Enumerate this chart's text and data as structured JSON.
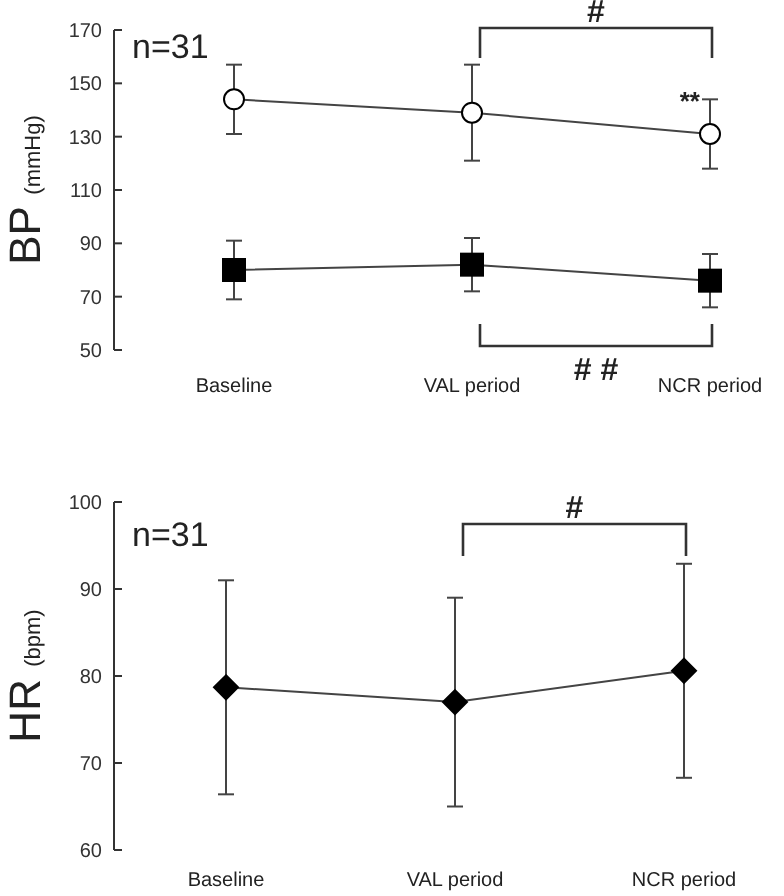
{
  "chart_data": [
    {
      "type": "line",
      "ylabel": "BP (mmHg)",
      "categories": [
        "Baseline",
        "VAL period",
        "NCR period"
      ],
      "ylim": [
        50,
        170
      ],
      "yticks": [
        50,
        70,
        90,
        110,
        130,
        150,
        170
      ],
      "series": [
        {
          "color": "#ffffff",
          "marker": "circle",
          "values": [
            144,
            139,
            131
          ],
          "errors": [
            13,
            18,
            13
          ]
        },
        {
          "color": "#000000",
          "marker": "square",
          "values": [
            80,
            82,
            76
          ],
          "errors": [
            11,
            10,
            10
          ]
        }
      ],
      "annotations": [
        "n=31",
        "#",
        "# #",
        {
          "text": "**",
          "x": "NCR period",
          "y": 131
        }
      ]
    },
    {
      "type": "line",
      "ylabel": "HR (bpm)",
      "categories": [
        "Baseline",
        "VAL period",
        "NCR period"
      ],
      "ylim": [
        60,
        100
      ],
      "yticks": [
        60,
        70,
        80,
        90,
        100
      ],
      "series": [
        {
          "color": "#000000",
          "marker": "diamond",
          "values": [
            78.7,
            77.0,
            80.6
          ],
          "errors": [
            12.3,
            12,
            12.3
          ]
        }
      ],
      "annotations": [
        "n=31",
        "#"
      ]
    }
  ]
}
